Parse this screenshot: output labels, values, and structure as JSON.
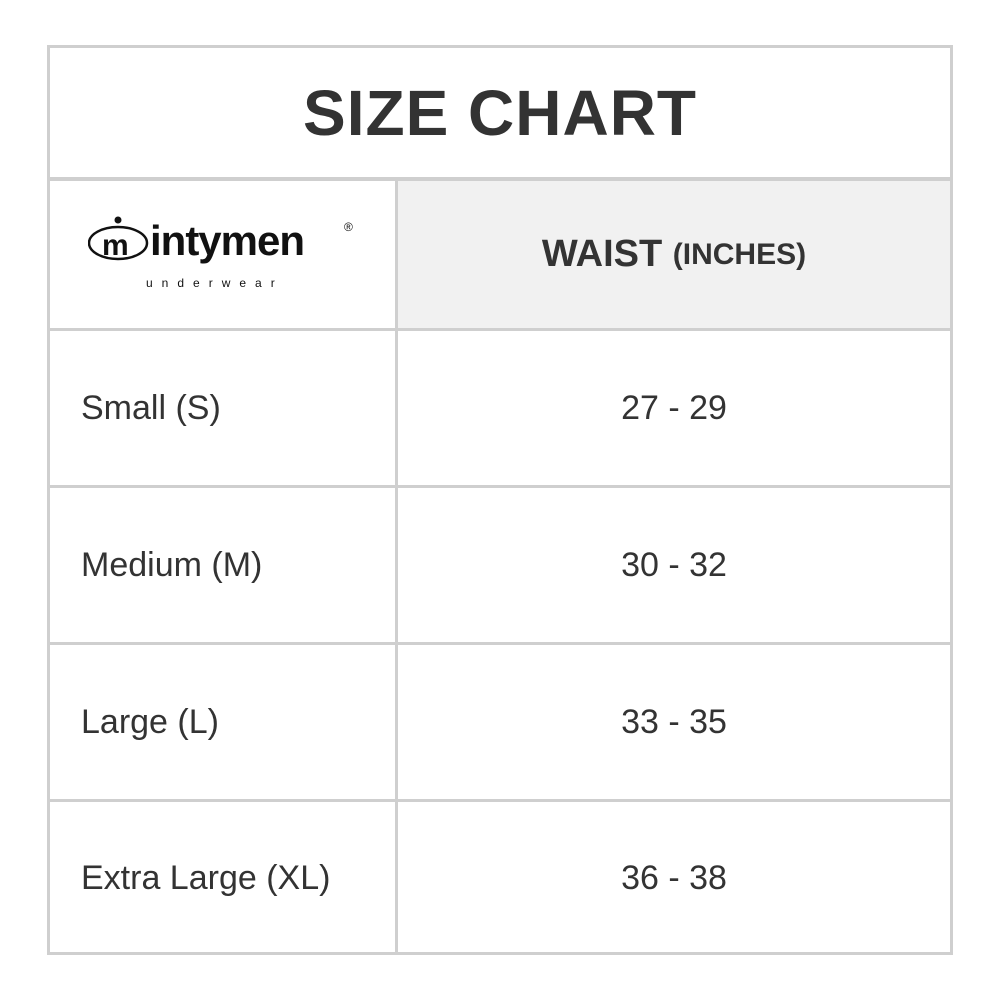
{
  "title": "SIZE CHART",
  "logo": {
    "brand": "mintymen",
    "tagline": "underwear",
    "mark": "®"
  },
  "header": {
    "column_label": "WAIST",
    "column_unit": "(INCHES)"
  },
  "rows": [
    {
      "size": "Small (S)",
      "waist": "27 - 29"
    },
    {
      "size": "Medium (M)",
      "waist": "30 - 32"
    },
    {
      "size": "Large (L)",
      "waist": "33 - 35"
    },
    {
      "size": "Extra Large (XL)",
      "waist": "36 - 38"
    }
  ],
  "colors": {
    "border": "#cfcfcf",
    "header_bg": "#f1f1f1",
    "text": "#333333"
  }
}
